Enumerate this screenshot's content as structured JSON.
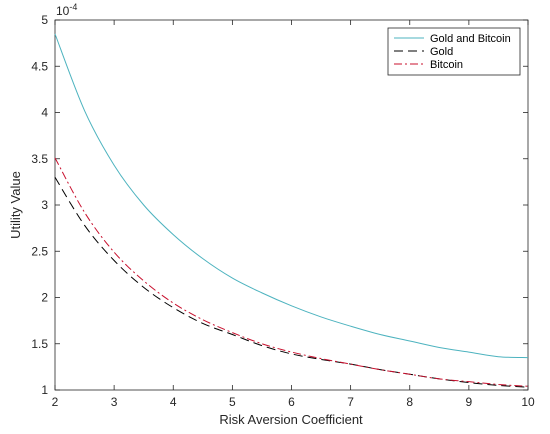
{
  "chart_data": {
    "type": "line",
    "title": "",
    "xlabel": "Risk Aversion Coefficient",
    "ylabel": "Utility Value",
    "y_exponent_base": "10",
    "y_exponent_power": "-4",
    "xlim": [
      2,
      10
    ],
    "ylim": [
      1,
      5
    ],
    "x_ticks": [
      "2",
      "3",
      "4",
      "5",
      "6",
      "7",
      "8",
      "9",
      "10"
    ],
    "y_ticks": [
      "1",
      "1.5",
      "2",
      "2.5",
      "3",
      "3.5",
      "4",
      "4.5",
      "5"
    ],
    "grid": false,
    "legend_position": "top-right",
    "x": [
      2,
      2.5,
      3,
      3.5,
      4,
      4.5,
      5,
      5.5,
      6,
      6.5,
      7,
      7.5,
      8,
      8.5,
      9,
      9.5,
      10
    ],
    "series": [
      {
        "name": "Gold and Bitcoin",
        "color": "#4db3bf",
        "dash": "solid",
        "values": [
          4.85,
          4.02,
          3.43,
          3.0,
          2.68,
          2.42,
          2.21,
          2.05,
          1.91,
          1.79,
          1.69,
          1.6,
          1.53,
          1.46,
          1.41,
          1.36,
          1.35
        ]
      },
      {
        "name": "Gold",
        "color": "#000000",
        "dash": "dashed",
        "values": [
          3.3,
          2.78,
          2.4,
          2.11,
          1.89,
          1.72,
          1.6,
          1.48,
          1.39,
          1.33,
          1.28,
          1.22,
          1.17,
          1.12,
          1.08,
          1.05,
          1.03
        ]
      },
      {
        "name": "Bitcoin",
        "color": "#c8102e",
        "dash": "dashdot",
        "values": [
          3.51,
          2.92,
          2.49,
          2.18,
          1.94,
          1.76,
          1.62,
          1.5,
          1.41,
          1.34,
          1.28,
          1.22,
          1.17,
          1.12,
          1.09,
          1.06,
          1.04
        ]
      }
    ]
  }
}
